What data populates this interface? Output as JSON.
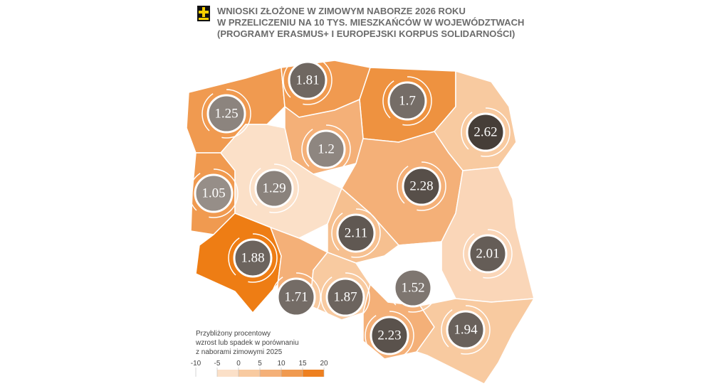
{
  "title": [
    "WNIOSKI ZŁOŻONE W ZIMOWYM NABORZE 2026 ROKU",
    "W PRZELICZENIU NA 10 TYS. MIESZKAŃCÓW W WOJEWÓDZTWACH",
    "(PROGRAMY ERASMUS+ I EUROPEJSKI KORPUS SOLIDARNOŚCI)"
  ],
  "regions": [
    {
      "value": 1.25,
      "color": "#f09a50"
    },
    {
      "value": 1.81,
      "color": "#f09a50"
    },
    {
      "value": 1.7,
      "color": "#ee9240"
    },
    {
      "value": 2.62,
      "color": "#f8caa0"
    },
    {
      "value": 1.2,
      "color": "#f4b078"
    },
    {
      "value": 1.05,
      "color": "#f09a50"
    },
    {
      "value": 1.29,
      "color": "#fbe0c8"
    },
    {
      "value": 2.28,
      "color": "#f4b078"
    },
    {
      "value": 2.11,
      "color": "#f6c090"
    },
    {
      "value": 2.01,
      "color": "#fad6b8"
    },
    {
      "value": 1.88,
      "color": "#ee7d14"
    },
    {
      "value": 1.71,
      "color": "#f4b078"
    },
    {
      "value": 1.87,
      "color": "#f8caa0"
    },
    {
      "value": 1.52,
      "color": "#ffffff"
    },
    {
      "value": 2.23,
      "color": "#f4b078"
    },
    {
      "value": 1.94,
      "color": "#f8caa0"
    }
  ],
  "legend": {
    "title": [
      "Przybliżony procentowy",
      "wzrost lub spadek w porównaniu",
      "z naborami zimowymi 2025"
    ],
    "ticks": [
      -10,
      -5,
      0,
      5,
      10,
      15,
      20
    ],
    "colors": [
      "#ffffff",
      "#fbe0c8",
      "#f8caa0",
      "#f4b078",
      "#f09a50",
      "#ee8020"
    ]
  }
}
